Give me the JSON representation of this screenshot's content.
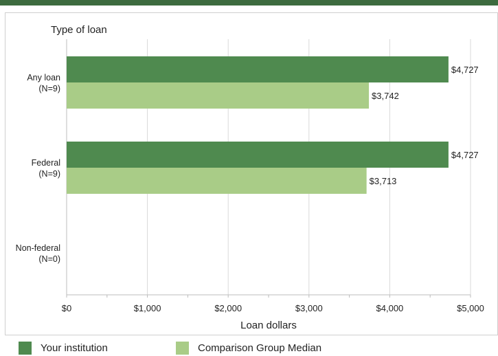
{
  "chart_data": {
    "type": "bar",
    "orientation": "horizontal",
    "title": "Type of loan",
    "xlabel": "Loan dollars",
    "xlim": [
      0,
      5000
    ],
    "ticks": [
      "$0",
      "$1,000",
      "$2,000",
      "$3,000",
      "$4,000",
      "$5,000"
    ],
    "tick_values": [
      0,
      1000,
      2000,
      3000,
      4000,
      5000
    ],
    "grid": true,
    "legend_position": "bottom",
    "categories": [
      {
        "label": "Any loan",
        "n": "(N=9)"
      },
      {
        "label": "Federal",
        "n": "(N=9)"
      },
      {
        "label": "Non-federal",
        "n": "(N=0)"
      }
    ],
    "series": [
      {
        "name": "Your institution",
        "color": "#4f8a4f",
        "values": [
          4727,
          4727,
          null
        ],
        "labels": [
          "$4,727",
          "$4,727",
          ""
        ]
      },
      {
        "name": "Comparison Group Median",
        "color": "#a9cc87",
        "values": [
          3742,
          3713,
          null
        ],
        "labels": [
          "$3,742",
          "$3,713",
          ""
        ]
      }
    ]
  }
}
